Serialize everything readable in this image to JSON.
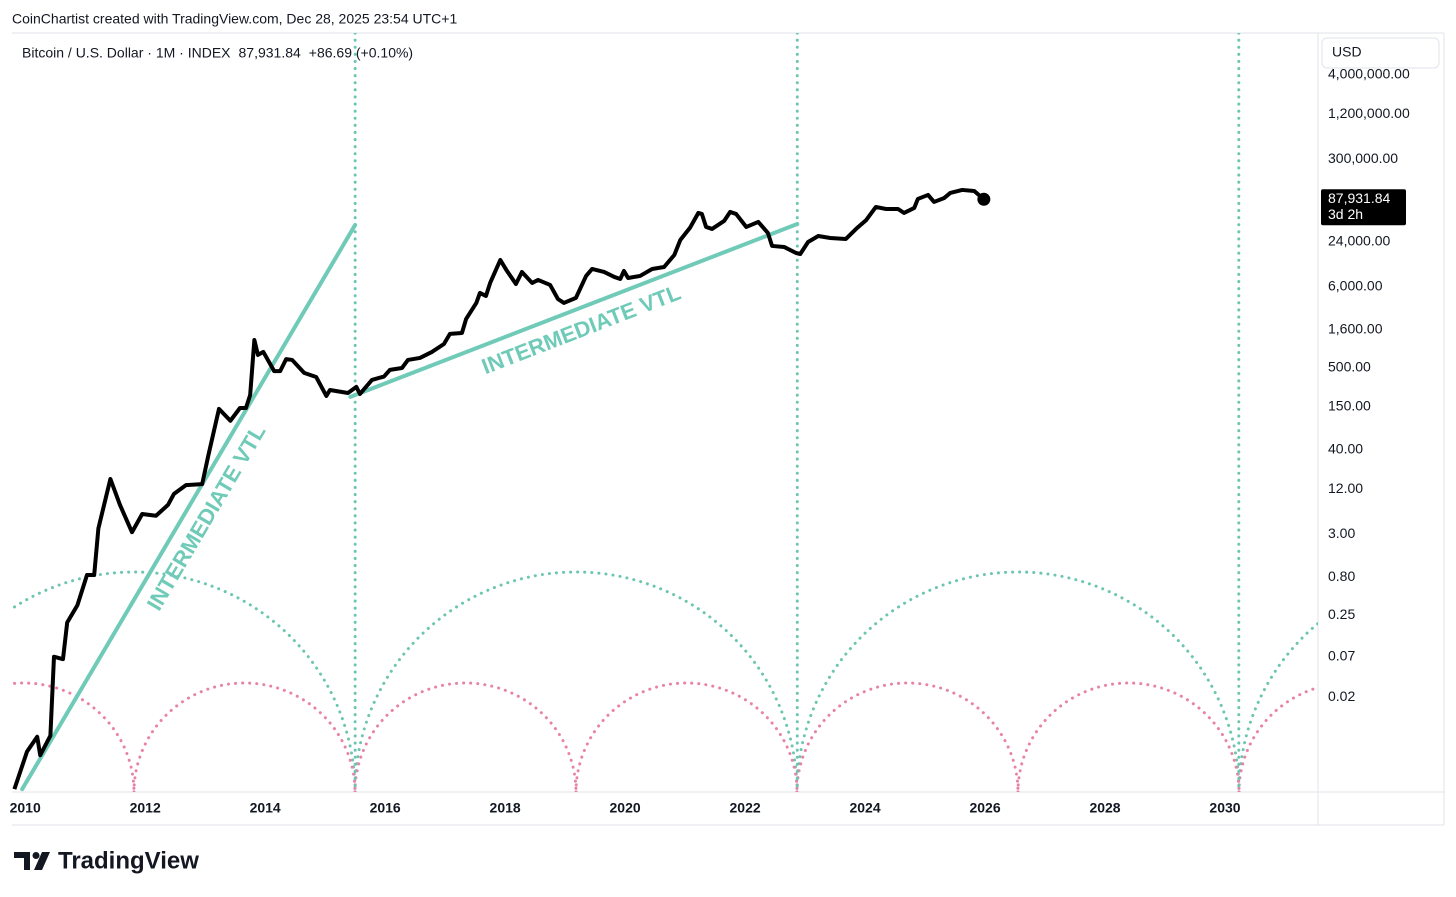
{
  "header": "CoinChartist created with TradingView.com, Dec 28, 2025 23:54 UTC+1",
  "brand": "TradingView",
  "chart_data": {
    "type": "line",
    "title": "Bitcoin / U.S. Dollar · 1M · INDEX",
    "change": "+86.69 (+0.10%)",
    "currency": "USD",
    "last_price": {
      "value": 87931.84,
      "label": "87,931.84"
    },
    "countdown": "3d 2h",
    "log_scale": true,
    "grid": false,
    "color": "#000000",
    "x": [
      2009.82,
      2010.03,
      2010.2,
      2010.25,
      2010.42,
      2010.48,
      2010.63,
      2010.7,
      2010.87,
      2011.03,
      2011.15,
      2011.22,
      2011.42,
      2011.58,
      2011.78,
      2011.95,
      2012.18,
      2012.38,
      2012.48,
      2012.68,
      2012.95,
      2013.05,
      2013.23,
      2013.42,
      2013.58,
      2013.68,
      2013.75,
      2013.82,
      2013.88,
      2013.97,
      2014.15,
      2014.25,
      2014.35,
      2014.45,
      2014.65,
      2014.85,
      2015.02,
      2015.08,
      2015.38,
      2015.52,
      2015.58,
      2015.78,
      2015.98,
      2016.08,
      2016.28,
      2016.38,
      2016.58,
      2016.78,
      2016.98,
      2017.08,
      2017.28,
      2017.35,
      2017.52,
      2017.58,
      2017.68,
      2017.75,
      2017.92,
      2018.02,
      2018.18,
      2018.28,
      2018.45,
      2018.55,
      2018.75,
      2018.88,
      2018.98,
      2019.18,
      2019.35,
      2019.45,
      2019.65,
      2019.82,
      2019.92,
      2019.98,
      2020.05,
      2020.25,
      2020.45,
      2020.65,
      2020.82,
      2020.92,
      2021.08,
      2021.22,
      2021.28,
      2021.35,
      2021.45,
      2021.65,
      2021.75,
      2021.85,
      2022.02,
      2022.22,
      2022.38,
      2022.45,
      2022.65,
      2022.85,
      2022.92,
      2023.05,
      2023.22,
      2023.42,
      2023.68,
      2023.85,
      2024.02,
      2024.18,
      2024.35,
      2024.55,
      2024.65,
      2024.82,
      2024.88,
      2025.05,
      2025.15,
      2025.32,
      2025.42,
      2025.62,
      2025.82,
      2025.98
    ],
    "values": [
      0.0012,
      0.0038,
      0.006,
      0.0034,
      0.0062,
      0.07,
      0.065,
      0.2,
      0.34,
      0.86,
      0.86,
      3.6,
      16.4,
      7.4,
      3.2,
      5.6,
      5.3,
      7.4,
      10.4,
      13.6,
      14,
      33,
      141,
      98,
      145,
      145,
      216,
      1170,
      740,
      811,
      450,
      450,
      650,
      634,
      426,
      376,
      210,
      252,
      230,
      277,
      223,
      343,
      381,
      467,
      495,
      634,
      674,
      811,
      1035,
      1410,
      1450,
      2230,
      3650,
      4960,
      4520,
      6740,
      13650,
      10050,
      6530,
      9440,
      6740,
      7400,
      6340,
      4120,
      3650,
      4260,
      8360,
      10350,
      9440,
      8110,
      7620,
      9750,
      7850,
      8360,
      10350,
      11000,
      15900,
      25200,
      36500,
      57800,
      56100,
      37600,
      35400,
      45200,
      59600,
      56100,
      37600,
      43900,
      31300,
      21000,
      20350,
      16900,
      16400,
      23700,
      28500,
      26800,
      26000,
      35400,
      46600,
      69500,
      65300,
      65300,
      57800,
      67500,
      88900,
      100500,
      81100,
      91600,
      106900,
      117200,
      113500,
      87931.84
    ],
    "trendlines": [
      {
        "label": "INTERMEDIATE VTL",
        "color": "#6fcab8",
        "x": [
          2009.95,
          2015.5
        ],
        "values": [
          0.0012,
          40000
        ]
      },
      {
        "label": "INTERMEDIATE VTL",
        "color": "#6fcab8",
        "x": [
          2015.42,
          2022.87
        ],
        "values": [
          204,
          41200
        ]
      }
    ],
    "cycle_lines": {
      "color": "#6cc5b0",
      "x": [
        2015.5,
        2022.87,
        2030.23
      ]
    },
    "xlim": [
      2009.78,
      2031.55
    ],
    "xticks": [
      2010,
      2012,
      2014,
      2016,
      2018,
      2020,
      2022,
      2024,
      2026,
      2028,
      2030
    ],
    "ylim": [
      0.0011,
      14500000
    ],
    "yticks": [
      {
        "value": 4000000,
        "label": "4,000,000.00"
      },
      {
        "value": 1200000,
        "label": "1,200,000.00"
      },
      {
        "value": 300000,
        "label": "300,000.00"
      },
      {
        "value": 24000,
        "label": "24,000.00"
      },
      {
        "value": 6000,
        "label": "6,000.00"
      },
      {
        "value": 1600,
        "label": "1,600.00"
      },
      {
        "value": 500,
        "label": "500.00"
      },
      {
        "value": 150,
        "label": "150.00"
      },
      {
        "value": 40,
        "label": "40.00"
      },
      {
        "value": 12,
        "label": "12.00"
      },
      {
        "value": 3,
        "label": "3.00"
      },
      {
        "value": 0.8,
        "label": "0.80"
      },
      {
        "value": 0.25,
        "label": "0.25"
      },
      {
        "value": 0.07,
        "label": "0.07"
      },
      {
        "value": 0.02,
        "label": "0.02"
      }
    ]
  }
}
